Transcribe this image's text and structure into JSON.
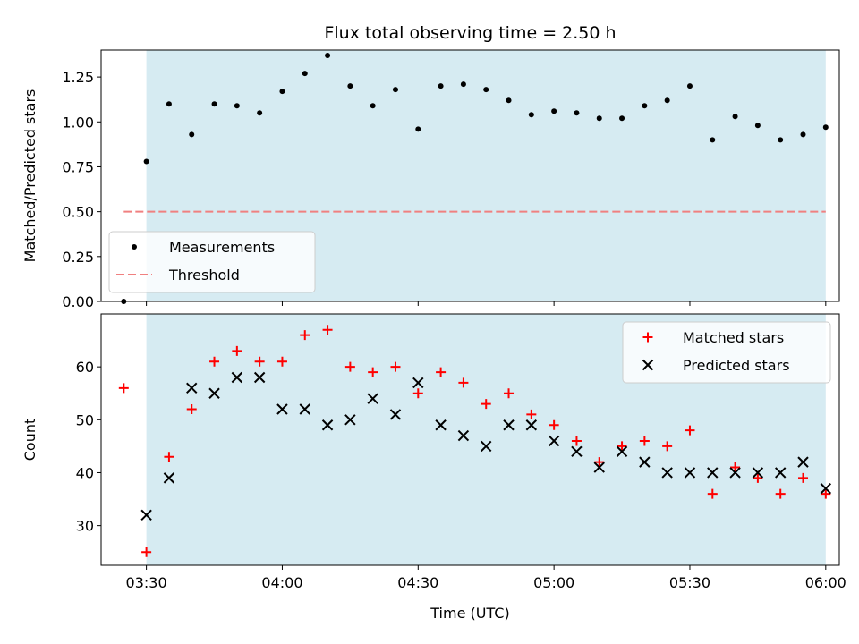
{
  "chart_data": [
    {
      "type": "scatter",
      "title": "Flux total observing time = 2.50 h",
      "ylabel": "Matched/Predicted stars",
      "xlim": [
        "03:20",
        "06:03"
      ],
      "ylim": [
        0,
        1.4
      ],
      "yticks": [
        "0.00",
        "0.25",
        "0.50",
        "0.75",
        "1.00",
        "1.25"
      ],
      "shaded_span": [
        "03:30",
        "06:00"
      ],
      "shade_color": "#add8e6",
      "legend_position": "lower-left",
      "series": [
        {
          "name": "Measurements",
          "marker": "dot",
          "color": "#000000",
          "points": [
            [
              "03:25",
              0.0
            ],
            [
              "03:30",
              0.78
            ],
            [
              "03:35",
              1.1
            ],
            [
              "03:40",
              0.93
            ],
            [
              "03:45",
              1.1
            ],
            [
              "03:50",
              1.09
            ],
            [
              "03:55",
              1.05
            ],
            [
              "04:00",
              1.17
            ],
            [
              "04:05",
              1.27
            ],
            [
              "04:10",
              1.37
            ],
            [
              "04:15",
              1.2
            ],
            [
              "04:20",
              1.09
            ],
            [
              "04:25",
              1.18
            ],
            [
              "04:30",
              0.96
            ],
            [
              "04:35",
              1.2
            ],
            [
              "04:40",
              1.21
            ],
            [
              "04:45",
              1.18
            ],
            [
              "04:50",
              1.12
            ],
            [
              "04:55",
              1.04
            ],
            [
              "05:00",
              1.06
            ],
            [
              "05:05",
              1.05
            ],
            [
              "05:10",
              1.02
            ],
            [
              "05:15",
              1.02
            ],
            [
              "05:20",
              1.09
            ],
            [
              "05:25",
              1.12
            ],
            [
              "05:30",
              1.2
            ],
            [
              "05:35",
              0.9
            ],
            [
              "05:40",
              1.03
            ],
            [
              "05:45",
              0.98
            ],
            [
              "05:50",
              0.9
            ],
            [
              "05:55",
              0.93
            ],
            [
              "06:00",
              0.97
            ]
          ]
        },
        {
          "name": "Threshold",
          "marker": "dashed-line",
          "color": "#f08080",
          "x": [
            "03:25",
            "06:00"
          ],
          "y": 0.5
        }
      ]
    },
    {
      "type": "scatter",
      "xlabel": "Time (UTC)",
      "ylabel": "Count",
      "xlim": [
        "03:20",
        "06:03"
      ],
      "ylim": [
        22.5,
        70
      ],
      "xticks": [
        "03:30",
        "04:00",
        "04:30",
        "05:00",
        "05:30",
        "06:00"
      ],
      "yticks": [
        "30",
        "40",
        "50",
        "60"
      ],
      "shaded_span": [
        "03:30",
        "06:00"
      ],
      "shade_color": "#add8e6",
      "legend_position": "top-right",
      "series": [
        {
          "name": "Matched stars",
          "marker": "plus",
          "color": "#ff0000",
          "points": [
            [
              "03:25",
              56
            ],
            [
              "03:30",
              25
            ],
            [
              "03:35",
              43
            ],
            [
              "03:40",
              52
            ],
            [
              "03:45",
              61
            ],
            [
              "03:50",
              63
            ],
            [
              "03:55",
              61
            ],
            [
              "04:00",
              61
            ],
            [
              "04:05",
              66
            ],
            [
              "04:10",
              67
            ],
            [
              "04:15",
              60
            ],
            [
              "04:20",
              59
            ],
            [
              "04:25",
              60
            ],
            [
              "04:30",
              55
            ],
            [
              "04:35",
              59
            ],
            [
              "04:40",
              57
            ],
            [
              "04:45",
              53
            ],
            [
              "04:50",
              55
            ],
            [
              "04:55",
              51
            ],
            [
              "05:00",
              49
            ],
            [
              "05:05",
              46
            ],
            [
              "05:10",
              42
            ],
            [
              "05:15",
              45
            ],
            [
              "05:20",
              46
            ],
            [
              "05:25",
              45
            ],
            [
              "05:30",
              48
            ],
            [
              "05:35",
              36
            ],
            [
              "05:40",
              41
            ],
            [
              "05:45",
              39
            ],
            [
              "05:50",
              36
            ],
            [
              "05:55",
              39
            ],
            [
              "06:00",
              36
            ]
          ]
        },
        {
          "name": "Predicted stars",
          "marker": "x",
          "color": "#000000",
          "points": [
            [
              "03:30",
              32
            ],
            [
              "03:35",
              39
            ],
            [
              "03:40",
              56
            ],
            [
              "03:45",
              55
            ],
            [
              "03:50",
              58
            ],
            [
              "03:55",
              58
            ],
            [
              "04:00",
              52
            ],
            [
              "04:05",
              52
            ],
            [
              "04:10",
              49
            ],
            [
              "04:15",
              50
            ],
            [
              "04:20",
              54
            ],
            [
              "04:25",
              51
            ],
            [
              "04:30",
              57
            ],
            [
              "04:35",
              49
            ],
            [
              "04:40",
              47
            ],
            [
              "04:45",
              45
            ],
            [
              "04:50",
              49
            ],
            [
              "04:55",
              49
            ],
            [
              "05:00",
              46
            ],
            [
              "05:05",
              44
            ],
            [
              "05:10",
              41
            ],
            [
              "05:15",
              44
            ],
            [
              "05:20",
              42
            ],
            [
              "05:25",
              40
            ],
            [
              "05:30",
              40
            ],
            [
              "05:35",
              40
            ],
            [
              "05:40",
              40
            ],
            [
              "05:45",
              40
            ],
            [
              "05:50",
              40
            ],
            [
              "05:55",
              42
            ],
            [
              "06:00",
              37
            ]
          ]
        }
      ]
    }
  ]
}
